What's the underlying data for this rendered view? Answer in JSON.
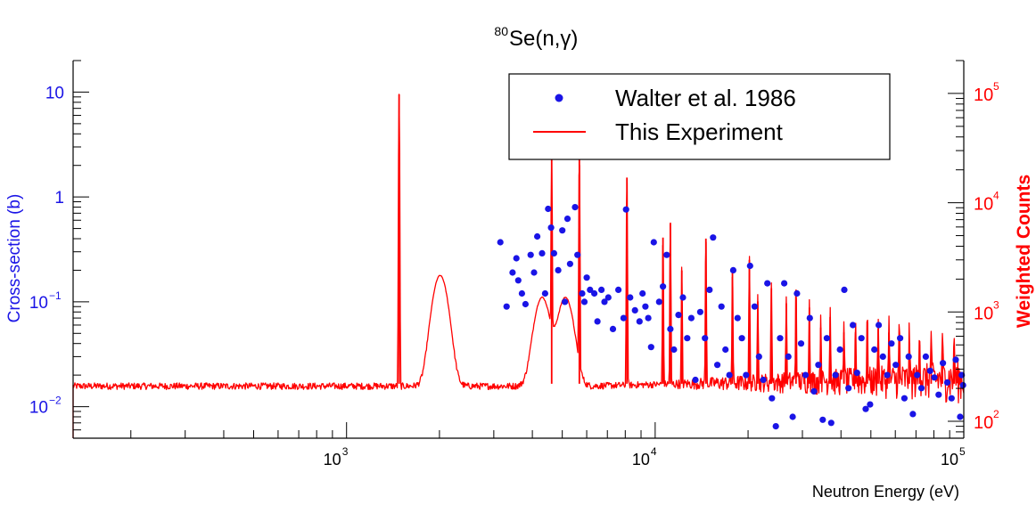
{
  "chart_data": {
    "type": "scatter",
    "title": {
      "sup": "80",
      "base": "Se(n,γ)"
    },
    "xlabel": "Neutron Energy (eV)",
    "ylabel_left": "Cross-section (b)",
    "ylabel_right": "Weighted  Counts",
    "x_scale": "log",
    "y_scale": "log",
    "xlim": [
      130,
      100000
    ],
    "ylim_left": [
      0.005,
      20
    ],
    "ylim_right": [
      70,
      200000
    ],
    "x_ticks": [
      {
        "value": 1000,
        "base": "10",
        "exp": "3"
      },
      {
        "value": 10000,
        "base": "10",
        "exp": "4"
      },
      {
        "value": 100000,
        "base": "10",
        "exp": "5"
      }
    ],
    "y_ticks_left": [
      {
        "value": 10,
        "base": "10",
        "exp": ""
      },
      {
        "value": 1,
        "base": "1",
        "exp": ""
      },
      {
        "value": 0.1,
        "base": "10",
        "exp": "−1"
      },
      {
        "value": 0.01,
        "base": "10",
        "exp": "−2"
      }
    ],
    "y_ticks_right": [
      {
        "value": 100,
        "base": "10",
        "exp": "2"
      },
      {
        "value": 1000,
        "base": "10",
        "exp": "3"
      },
      {
        "value": 10000,
        "base": "10",
        "exp": "4"
      },
      {
        "value": 100000,
        "base": "10",
        "exp": "5"
      }
    ],
    "grid": false,
    "legend_position": "top-right",
    "colors": {
      "points": "#1a14e6",
      "line": "#ff0000",
      "axis": "#000000",
      "left_axis_text": "#1a14e6",
      "right_axis_text": "#ff0000"
    },
    "series": [
      {
        "name": "Walter et al. 1986",
        "axis": "left",
        "kind": "points",
        "points": [
          [
            3150,
            0.37
          ],
          [
            3300,
            0.09
          ],
          [
            3450,
            0.19
          ],
          [
            3550,
            0.26
          ],
          [
            3600,
            0.16
          ],
          [
            3700,
            0.12
          ],
          [
            3800,
            0.095
          ],
          [
            3950,
            0.28
          ],
          [
            4050,
            0.19
          ],
          [
            4150,
            0.42
          ],
          [
            4300,
            0.29
          ],
          [
            4400,
            0.12
          ],
          [
            4500,
            0.77
          ],
          [
            4600,
            0.51
          ],
          [
            4700,
            0.29
          ],
          [
            4850,
            0.2
          ],
          [
            5000,
            0.48
          ],
          [
            5100,
            0.1
          ],
          [
            5200,
            0.62
          ],
          [
            5300,
            0.23
          ],
          [
            5500,
            0.8
          ],
          [
            5600,
            0.28
          ],
          [
            5800,
            0.12
          ],
          [
            5900,
            0.1
          ],
          [
            6000,
            0.17
          ],
          [
            6150,
            0.13
          ],
          [
            6350,
            0.12
          ],
          [
            6500,
            0.065
          ],
          [
            6700,
            0.13
          ],
          [
            6850,
            0.1
          ],
          [
            7050,
            0.11
          ],
          [
            7300,
            0.055
          ],
          [
            7600,
            0.13
          ],
          [
            7900,
            0.07
          ],
          [
            8050,
            0.76
          ],
          [
            8300,
            0.11
          ],
          [
            8600,
            0.083
          ],
          [
            8900,
            0.065
          ],
          [
            9100,
            0.12
          ],
          [
            9300,
            0.09
          ],
          [
            9500,
            0.07
          ],
          [
            9700,
            0.037
          ],
          [
            9900,
            0.37
          ],
          [
            10300,
            0.1
          ],
          [
            10600,
            0.14
          ],
          [
            10900,
            0.28
          ],
          [
            11200,
            0.055
          ],
          [
            11500,
            0.035
          ],
          [
            11900,
            0.075
          ],
          [
            12300,
            0.11
          ],
          [
            12700,
            0.045
          ],
          [
            13100,
            0.07
          ],
          [
            13500,
            0.018
          ],
          [
            14000,
            0.08
          ],
          [
            14500,
            0.045
          ],
          [
            15000,
            0.13
          ],
          [
            15400,
            0.41
          ],
          [
            15900,
            0.025
          ],
          [
            16400,
            0.09
          ],
          [
            16900,
            0.035
          ],
          [
            17400,
            0.02
          ],
          [
            17900,
            0.2
          ],
          [
            18500,
            0.07
          ],
          [
            19100,
            0.045
          ],
          [
            19700,
            0.02
          ],
          [
            20300,
            0.22
          ],
          [
            21000,
            0.09
          ],
          [
            21700,
            0.03
          ],
          [
            22400,
            0.018
          ],
          [
            23100,
            0.15
          ],
          [
            23900,
            0.012
          ],
          [
            24600,
            0.0065
          ],
          [
            25400,
            0.045
          ],
          [
            26200,
            0.15
          ],
          [
            27000,
            0.03
          ],
          [
            27900,
            0.008
          ],
          [
            28800,
            0.12
          ],
          [
            29700,
            0.04
          ],
          [
            30700,
            0.02
          ],
          [
            31700,
            0.07
          ],
          [
            32700,
            0.014
          ],
          [
            33800,
            0.025
          ],
          [
            34900,
            0.0075
          ],
          [
            36000,
            0.045
          ],
          [
            37200,
            0.007
          ],
          [
            38400,
            0.02
          ],
          [
            39700,
            0.035
          ],
          [
            41000,
            0.13
          ],
          [
            42300,
            0.015
          ],
          [
            43700,
            0.06
          ],
          [
            45100,
            0.021
          ],
          [
            46600,
            0.045
          ],
          [
            48100,
            0.0095
          ],
          [
            49700,
            0.0105
          ],
          [
            51300,
            0.035
          ],
          [
            53000,
            0.06
          ],
          [
            54700,
            0.03
          ],
          [
            56500,
            0.02
          ],
          [
            58300,
            0.04
          ],
          [
            60200,
            0.025
          ],
          [
            62200,
            0.045
          ],
          [
            64200,
            0.012
          ],
          [
            66300,
            0.03
          ],
          [
            68400,
            0.0085
          ],
          [
            70600,
            0.02
          ],
          [
            72900,
            0.015
          ],
          [
            75300,
            0.03
          ],
          [
            77800,
            0.022
          ],
          [
            80300,
            0.019
          ],
          [
            82900,
            0.013
          ],
          [
            85600,
            0.026
          ],
          [
            88400,
            0.017
          ],
          [
            91300,
            0.012
          ],
          [
            94200,
            0.028
          ],
          [
            97300,
            0.008
          ],
          [
            98500,
            0.02
          ],
          [
            99500,
            0.016
          ]
        ]
      },
      {
        "name": "This Experiment",
        "axis": "right",
        "kind": "line",
        "baseline_counts": 210,
        "baseline_high_energy": 250,
        "resonances": [
          {
            "energy": 1480,
            "peak": 98000,
            "kind": "spike"
          },
          {
            "energy": 2010,
            "peak": 1950,
            "kind": "broad"
          },
          {
            "energy": 4300,
            "peak": 1150,
            "kind": "broad"
          },
          {
            "energy": 4620,
            "peak": 25000,
            "kind": "spike"
          },
          {
            "energy": 5120,
            "peak": 1150,
            "kind": "broad"
          },
          {
            "energy": 5680,
            "peak": 27000,
            "kind": "spike"
          },
          {
            "energy": 8100,
            "peak": 17000,
            "kind": "spike"
          },
          {
            "energy": 10600,
            "peak": 4800,
            "kind": "spike"
          },
          {
            "energy": 11200,
            "peak": 6500,
            "kind": "spike"
          },
          {
            "energy": 12200,
            "peak": 2400,
            "kind": "spike"
          },
          {
            "energy": 14600,
            "peak": 4700,
            "kind": "spike"
          },
          {
            "energy": 17800,
            "peak": 2300,
            "kind": "spike"
          },
          {
            "energy": 20200,
            "peak": 3000,
            "kind": "spike"
          },
          {
            "energy": 21500,
            "peak": 1250,
            "kind": "spike"
          },
          {
            "energy": 23800,
            "peak": 1650,
            "kind": "spike"
          },
          {
            "energy": 26600,
            "peak": 1200,
            "kind": "spike"
          },
          {
            "energy": 28600,
            "peak": 1600,
            "kind": "spike"
          },
          {
            "energy": 31600,
            "peak": 1100,
            "kind": "spike"
          },
          {
            "energy": 34400,
            "peak": 720,
            "kind": "spike"
          },
          {
            "energy": 36900,
            "peak": 900,
            "kind": "spike"
          },
          {
            "energy": 40900,
            "peak": 650,
            "kind": "spike"
          },
          {
            "energy": 44600,
            "peak": 650,
            "kind": "spike"
          },
          {
            "energy": 48700,
            "peak": 800,
            "kind": "spike"
          },
          {
            "energy": 52800,
            "peak": 700,
            "kind": "spike"
          },
          {
            "energy": 57200,
            "peak": 650,
            "kind": "spike"
          },
          {
            "energy": 61800,
            "peak": 600,
            "kind": "spike"
          },
          {
            "energy": 66600,
            "peak": 520,
            "kind": "spike"
          },
          {
            "energy": 71900,
            "peak": 500,
            "kind": "spike"
          },
          {
            "energy": 78400,
            "peak": 450,
            "kind": "spike"
          },
          {
            "energy": 85300,
            "peak": 420,
            "kind": "spike"
          },
          {
            "energy": 93100,
            "peak": 380,
            "kind": "spike"
          }
        ]
      }
    ]
  }
}
